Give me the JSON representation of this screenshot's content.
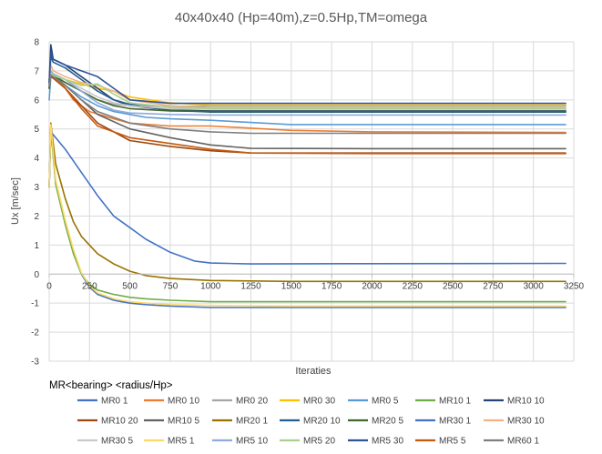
{
  "chart_data": {
    "type": "line",
    "title": "40x40x40 (Hp=40m),z=0.5Hp,TM=omega",
    "xlabel": "Iteraties",
    "ylabel": "Ux [m/sec]",
    "xlim": [
      0,
      3250
    ],
    "ylim": [
      -3,
      8
    ],
    "x_ticks": [
      "0",
      "250",
      "500",
      "750",
      "1000",
      "1250",
      "1500",
      "1750",
      "2000",
      "2250",
      "2500",
      "2750",
      "3000",
      "3250"
    ],
    "y_ticks": [
      "-3",
      "-2",
      "-1",
      "0",
      "1",
      "2",
      "3",
      "4",
      "5",
      "6",
      "7",
      "8"
    ],
    "grid": true,
    "legend_title": "MR<bearing> <radius/Hp>",
    "legend_position": "bottom",
    "series": [
      {
        "name": "MR0 1",
        "color": "#4472C4",
        "x": [
          0,
          10,
          40,
          100,
          150,
          200,
          250,
          300,
          400,
          500,
          600,
          750,
          1000,
          1500,
          2000,
          3200
        ],
        "values": [
          3.0,
          5.1,
          3.2,
          1.8,
          0.8,
          0.0,
          -0.45,
          -0.7,
          -0.9,
          -1.0,
          -1.05,
          -1.1,
          -1.15,
          -1.15,
          -1.15,
          -1.15
        ]
      },
      {
        "name": "MR0 10",
        "color": "#ED7D31",
        "x": [
          0,
          10,
          25,
          75,
          150,
          250,
          400,
          500,
          750,
          1000,
          1500,
          2000,
          3200
        ],
        "values": [
          6.5,
          6.9,
          6.85,
          6.6,
          6.0,
          5.6,
          5.35,
          5.2,
          5.1,
          5.1,
          4.95,
          4.9,
          4.88
        ]
      },
      {
        "name": "MR0 20",
        "color": "#A5A5A5",
        "x": [
          0,
          10,
          25,
          100,
          200,
          300,
          400,
          500,
          750,
          1000,
          2000,
          3200
        ],
        "values": [
          6.6,
          6.85,
          6.8,
          6.6,
          6.3,
          6.0,
          5.85,
          5.8,
          5.78,
          5.78,
          5.78,
          5.78
        ]
      },
      {
        "name": "MR0 30",
        "color": "#FFC000",
        "x": [
          0,
          10,
          25,
          100,
          200,
          300,
          400,
          500,
          750,
          1000,
          2000,
          3200
        ],
        "values": [
          6.5,
          6.9,
          6.85,
          6.7,
          6.55,
          6.4,
          6.3,
          6.1,
          5.9,
          5.82,
          5.82,
          5.82
        ]
      },
      {
        "name": "MR0 5",
        "color": "#5B9BD5",
        "x": [
          0,
          10,
          25,
          100,
          200,
          300,
          400,
          500,
          600,
          750,
          1000,
          1500,
          2000,
          3200
        ],
        "values": [
          6.0,
          6.8,
          6.8,
          6.5,
          6.1,
          5.8,
          5.6,
          5.5,
          5.4,
          5.35,
          5.3,
          5.15,
          5.15,
          5.15
        ]
      },
      {
        "name": "MR10 1",
        "color": "#70AD47",
        "x": [
          0,
          10,
          40,
          100,
          150,
          200,
          250,
          300,
          400,
          500,
          600,
          750,
          1000,
          1500,
          2000,
          3200
        ],
        "values": [
          3.0,
          5.0,
          3.1,
          1.7,
          0.7,
          0.0,
          -0.35,
          -0.55,
          -0.7,
          -0.8,
          -0.85,
          -0.9,
          -0.95,
          -0.95,
          -0.95,
          -0.95
        ]
      },
      {
        "name": "MR10 10",
        "color": "#264478",
        "x": [
          0,
          10,
          25,
          100,
          200,
          300,
          400,
          500,
          750,
          1000,
          2000,
          3200
        ],
        "values": [
          6.6,
          7.9,
          7.4,
          7.2,
          6.8,
          6.4,
          6.0,
          5.8,
          5.65,
          5.62,
          5.62,
          5.62
        ]
      },
      {
        "name": "MR10 20",
        "color": "#9E480E",
        "x": [
          0,
          10,
          25,
          100,
          200,
          300,
          500,
          750,
          1000,
          1250,
          2000,
          3200
        ],
        "values": [
          6.7,
          6.8,
          6.75,
          6.4,
          5.8,
          5.2,
          4.6,
          4.4,
          4.25,
          4.17,
          4.17,
          4.17
        ]
      },
      {
        "name": "MR10 5",
        "color": "#636363",
        "x": [
          0,
          10,
          25,
          100,
          200,
          300,
          500,
          750,
          1000,
          1250,
          2000,
          3200
        ],
        "values": [
          6.4,
          6.9,
          6.85,
          6.5,
          6.0,
          5.5,
          5.0,
          4.7,
          4.45,
          4.33,
          4.32,
          4.32
        ]
      },
      {
        "name": "MR20 1",
        "color": "#997300",
        "x": [
          0,
          10,
          40,
          100,
          150,
          200,
          250,
          300,
          400,
          500,
          600,
          750,
          1000,
          1500,
          2000,
          3200
        ],
        "values": [
          3.0,
          5.2,
          3.8,
          2.6,
          1.8,
          1.3,
          1.0,
          0.7,
          0.35,
          0.1,
          -0.05,
          -0.15,
          -0.22,
          -0.25,
          -0.25,
          -0.25
        ]
      },
      {
        "name": "MR20 10",
        "color": "#255E91",
        "x": [
          0,
          10,
          25,
          100,
          200,
          300,
          400,
          500,
          750,
          1000,
          2000,
          3200
        ],
        "values": [
          6.5,
          7.5,
          7.3,
          7.1,
          6.7,
          6.3,
          6.0,
          5.85,
          5.65,
          5.58,
          5.58,
          5.58
        ]
      },
      {
        "name": "MR20 5",
        "color": "#43682B",
        "x": [
          0,
          10,
          25,
          100,
          200,
          300,
          400,
          500,
          750,
          1000,
          2000,
          3200
        ],
        "values": [
          6.4,
          6.9,
          6.85,
          6.6,
          6.3,
          6.0,
          5.8,
          5.7,
          5.62,
          5.6,
          5.6,
          5.6
        ]
      },
      {
        "name": "MR30 1",
        "color": "#4472C4",
        "x": [
          0,
          10,
          40,
          100,
          200,
          300,
          400,
          500,
          600,
          750,
          900,
          1000,
          1250,
          2000,
          3200
        ],
        "values": [
          3.0,
          4.9,
          4.7,
          4.3,
          3.5,
          2.7,
          2.0,
          1.6,
          1.2,
          0.75,
          0.45,
          0.38,
          0.35,
          0.36,
          0.37
        ]
      },
      {
        "name": "MR30 10",
        "color": "#F4B183",
        "x": [
          0,
          10,
          25,
          100,
          200,
          300,
          400,
          500,
          750,
          1000,
          2000,
          3200
        ],
        "values": [
          6.5,
          7.2,
          7.0,
          6.8,
          6.6,
          6.5,
          6.3,
          6.0,
          5.8,
          5.72,
          5.72,
          5.72
        ]
      },
      {
        "name": "MR30 5",
        "color": "#C9C9C9",
        "x": [
          0,
          10,
          25,
          100,
          200,
          300,
          400,
          500,
          750,
          1000,
          2000,
          3200
        ],
        "values": [
          6.5,
          6.9,
          6.85,
          6.7,
          6.4,
          6.1,
          5.9,
          5.8,
          5.7,
          5.68,
          5.68,
          5.68
        ]
      },
      {
        "name": "MR5 1",
        "color": "#FFD966",
        "x": [
          0,
          10,
          40,
          100,
          150,
          200,
          250,
          300,
          400,
          500,
          600,
          750,
          1000,
          1500,
          2000,
          3200
        ],
        "values": [
          3.0,
          5.15,
          3.25,
          1.85,
          0.85,
          0.05,
          -0.4,
          -0.65,
          -0.85,
          -0.95,
          -1.0,
          -1.05,
          -1.08,
          -1.1,
          -1.1,
          -1.1
        ]
      },
      {
        "name": "MR5 10",
        "color": "#8FAADC",
        "x": [
          0,
          10,
          25,
          100,
          200,
          300,
          400,
          500,
          750,
          1000,
          2000,
          3200
        ],
        "values": [
          6.5,
          7.0,
          6.9,
          6.7,
          6.3,
          5.9,
          5.65,
          5.55,
          5.5,
          5.48,
          5.48,
          5.48
        ]
      },
      {
        "name": "MR5 20",
        "color": "#A9D18E",
        "x": [
          0,
          10,
          25,
          100,
          200,
          300,
          400,
          500,
          750,
          1000,
          2000,
          3200
        ],
        "values": [
          6.5,
          6.9,
          6.85,
          6.7,
          6.5,
          6.55,
          6.2,
          5.9,
          5.75,
          5.7,
          5.7,
          5.7
        ]
      },
      {
        "name": "MR5 30",
        "color": "#2F5597",
        "x": [
          0,
          10,
          25,
          100,
          200,
          300,
          400,
          500,
          750,
          1000,
          2000,
          3200
        ],
        "values": [
          6.6,
          7.6,
          7.4,
          7.2,
          7.0,
          6.8,
          6.4,
          6.0,
          5.88,
          5.88,
          5.88,
          5.88
        ]
      },
      {
        "name": "MR5 5",
        "color": "#C55A11",
        "x": [
          0,
          10,
          25,
          100,
          200,
          300,
          500,
          750,
          1000,
          1250,
          2000,
          3200
        ],
        "values": [
          6.5,
          6.85,
          6.8,
          6.4,
          5.7,
          5.1,
          4.7,
          4.5,
          4.3,
          4.17,
          4.15,
          4.15
        ]
      },
      {
        "name": "MR60 1",
        "color": "#7F7F7F",
        "x": [
          0,
          10,
          25,
          100,
          200,
          300,
          500,
          750,
          1000,
          1250,
          2000,
          3200
        ],
        "values": [
          6.5,
          6.85,
          6.8,
          6.5,
          6.0,
          5.6,
          5.2,
          5.0,
          4.9,
          4.85,
          4.85,
          4.85
        ]
      }
    ]
  }
}
